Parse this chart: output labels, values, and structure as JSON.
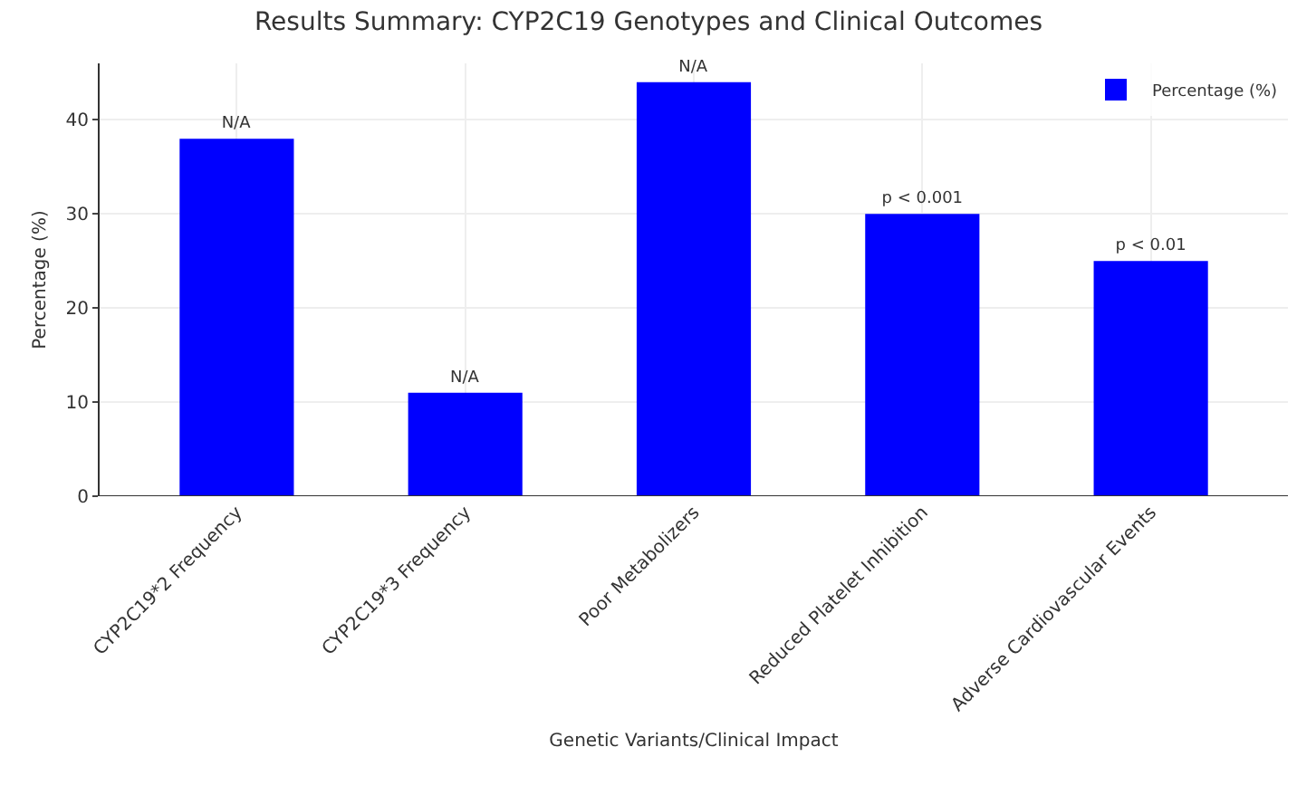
{
  "chart_data": {
    "type": "bar",
    "title": "Results Summary: CYP2C19 Genotypes and Clinical Outcomes",
    "xlabel": "Genetic Variants/Clinical Impact",
    "ylabel": "Percentage (%)",
    "categories": [
      "CYP2C19*2 Frequency",
      "CYP2C19*3 Frequency",
      "Poor Metabolizers",
      "Reduced Platelet Inhibition",
      "Adverse Cardiovascular Events"
    ],
    "series": [
      {
        "name": "Percentage (%)",
        "color": "#0000ff",
        "values": [
          38,
          11,
          44,
          30,
          25
        ],
        "value_labels": [
          "N/A",
          "N/A",
          "N/A",
          "p < 0.001",
          "p < 0.01"
        ]
      }
    ],
    "ylim": [
      0,
      46
    ],
    "yticks": [
      0,
      10,
      20,
      30,
      40
    ],
    "grid": true,
    "legend": "top right"
  }
}
